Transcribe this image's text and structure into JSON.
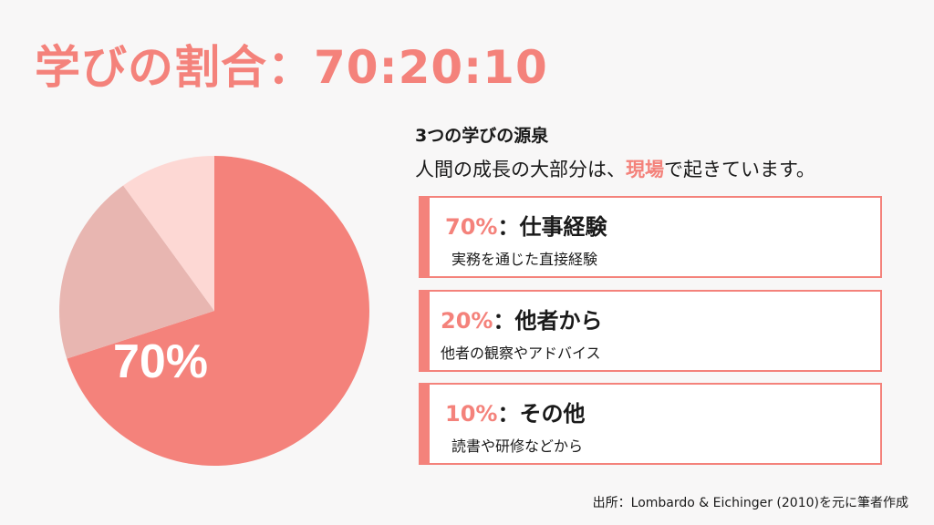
{
  "title": "学びの割合：70:20:10",
  "chart_data": {
    "type": "pie",
    "categories": [
      "仕事経験",
      "他者から",
      "その他"
    ],
    "values": [
      70,
      20,
      10
    ],
    "colors": [
      "#f4827b",
      "#e8b6b1",
      "#fdd8d4"
    ],
    "label": "70%"
  },
  "info": {
    "heading": "3つの学びの源泉",
    "sub_before": "人間の成長の大部分は、",
    "sub_highlight": "現場",
    "sub_after": "で起きています。"
  },
  "cards": [
    {
      "pct": "70%",
      "sep": "：",
      "name": "仕事経験",
      "desc": "実務を通じた直接経験"
    },
    {
      "pct": "20%",
      "sep": "：",
      "name": "他者から",
      "desc": "他者の観察やアドバイス"
    },
    {
      "pct": "10%",
      "sep": "：",
      "name": "その他",
      "desc": "読書や研修などから"
    }
  ],
  "footer": "出所：Lombardo & Eichinger (2010)を元に筆者作成",
  "accent_color": "#f4827b"
}
